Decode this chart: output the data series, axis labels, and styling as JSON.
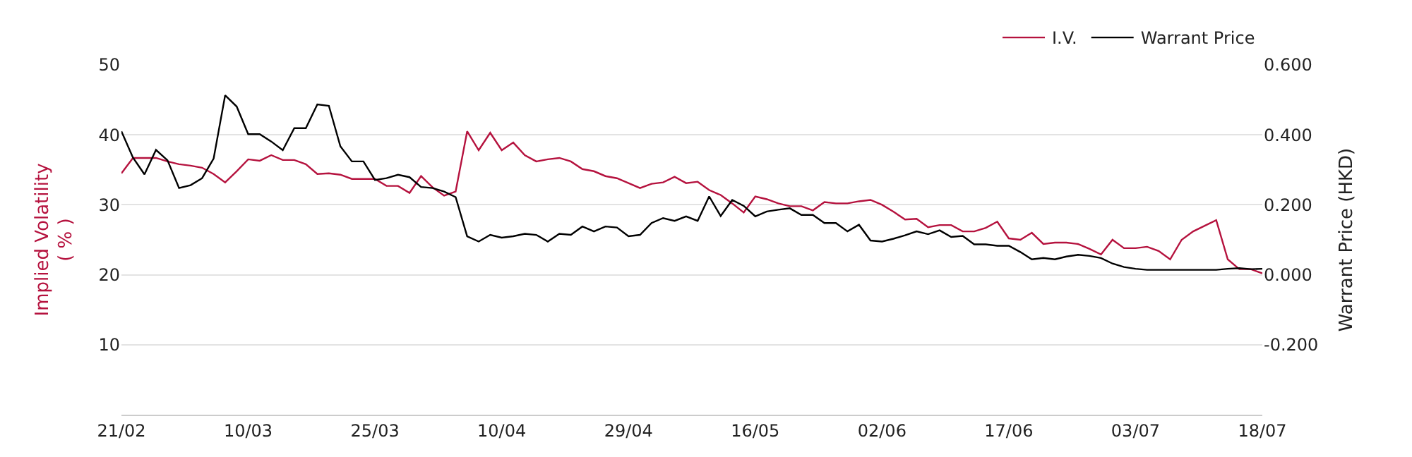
{
  "chart_data": {
    "type": "line",
    "ylabel": "Implied Volatility\n( % )",
    "y2label": "Warrant Price (HKD)",
    "categories": [
      "21/02",
      null,
      null,
      null,
      null,
      null,
      null,
      null,
      null,
      null,
      null,
      "10/03",
      null,
      null,
      null,
      null,
      null,
      null,
      null,
      null,
      null,
      null,
      "25/03",
      null,
      null,
      null,
      null,
      null,
      null,
      null,
      null,
      null,
      null,
      "10/04",
      null,
      null,
      null,
      null,
      null,
      null,
      null,
      null,
      null,
      null,
      "29/04",
      null,
      null,
      null,
      null,
      null,
      null,
      null,
      null,
      null,
      null,
      "16/05",
      null,
      null,
      null,
      null,
      null,
      null,
      null,
      null,
      null,
      null,
      "02/06",
      null,
      null,
      null,
      null,
      null,
      null,
      null,
      null,
      null,
      null,
      "17/06",
      null,
      null,
      null,
      null,
      null,
      null,
      null,
      null,
      null,
      null,
      "03/07",
      null,
      null,
      null,
      null,
      null,
      null,
      null,
      null,
      null,
      null,
      "18/07"
    ],
    "series": [
      {
        "name": "I.V.",
        "color": "#b5123e",
        "values": [
          34.5,
          36.7,
          36.7,
          36.7,
          36.2,
          35.8,
          35.6,
          35.3,
          34.4,
          33.2,
          34.8,
          36.5,
          36.3,
          37.1,
          36.4,
          36.4,
          35.8,
          34.4,
          34.5,
          34.3,
          33.7,
          33.7,
          33.7,
          32.7,
          32.7,
          31.7,
          34.1,
          32.5,
          31.3,
          31.9,
          40.5,
          37.8,
          40.3,
          37.8,
          38.9,
          37.1,
          36.2,
          36.5,
          36.7,
          36.2,
          35.1,
          34.8,
          34.1,
          33.8,
          33.1,
          32.4,
          33.0,
          33.2,
          34.0,
          33.1,
          33.3,
          32.1,
          31.4,
          30.2,
          28.9,
          31.2,
          30.8,
          30.2,
          29.8,
          29.8,
          29.2,
          30.4,
          30.2,
          30.2,
          30.5,
          30.7,
          30.0,
          29.0,
          27.9,
          28.0,
          26.8,
          27.1,
          27.1,
          26.2,
          26.2,
          26.7,
          27.6,
          25.2,
          25.0,
          26.0,
          24.4,
          24.6,
          24.6,
          24.4,
          23.7,
          22.9,
          25.0,
          23.8,
          23.8,
          24.0,
          23.4,
          22.2,
          25.0,
          26.2,
          27.0,
          27.8,
          22.2,
          20.8,
          20.8,
          20.2
        ]
      },
      {
        "name": "Warrant Price",
        "color": "#000000",
        "axis": "y2",
        "values": [
          0.41,
          0.335,
          0.287,
          0.357,
          0.327,
          0.248,
          0.256,
          0.276,
          0.332,
          0.513,
          0.481,
          0.402,
          0.402,
          0.381,
          0.356,
          0.419,
          0.419,
          0.487,
          0.483,
          0.367,
          0.324,
          0.324,
          0.271,
          0.276,
          0.286,
          0.279,
          0.251,
          0.248,
          0.238,
          0.222,
          0.11,
          0.095,
          0.114,
          0.106,
          0.11,
          0.117,
          0.114,
          0.095,
          0.117,
          0.114,
          0.138,
          0.124,
          0.138,
          0.135,
          0.11,
          0.114,
          0.148,
          0.162,
          0.154,
          0.167,
          0.154,
          0.224,
          0.168,
          0.214,
          0.197,
          0.167,
          0.181,
          0.186,
          0.19,
          0.171,
          0.171,
          0.148,
          0.148,
          0.124,
          0.143,
          0.098,
          0.095,
          0.103,
          0.113,
          0.124,
          0.116,
          0.127,
          0.108,
          0.111,
          0.087,
          0.087,
          0.083,
          0.083,
          0.065,
          0.044,
          0.048,
          0.044,
          0.052,
          0.057,
          0.054,
          0.048,
          0.032,
          0.022,
          0.017,
          0.014,
          0.014,
          0.014,
          0.014,
          0.014,
          0.014,
          0.014,
          0.017,
          0.019,
          0.016,
          0.017
        ]
      }
    ],
    "ylim": [
      0,
      50
    ],
    "yticks": [
      10,
      20,
      30,
      40,
      50
    ],
    "y2lim": [
      -0.4,
      0.6
    ],
    "y2ticks": [
      {
        "value": -0.2,
        "label": "-0.200"
      },
      {
        "value": 0,
        "label": "0.000"
      },
      {
        "value": 0.2,
        "label": "0.200"
      },
      {
        "value": 0.4,
        "label": "0.400"
      },
      {
        "value": 0.6,
        "label": "0.600"
      }
    ],
    "grid": "y",
    "legend": "top right",
    "marker": "none",
    "line_style": "solid"
  }
}
